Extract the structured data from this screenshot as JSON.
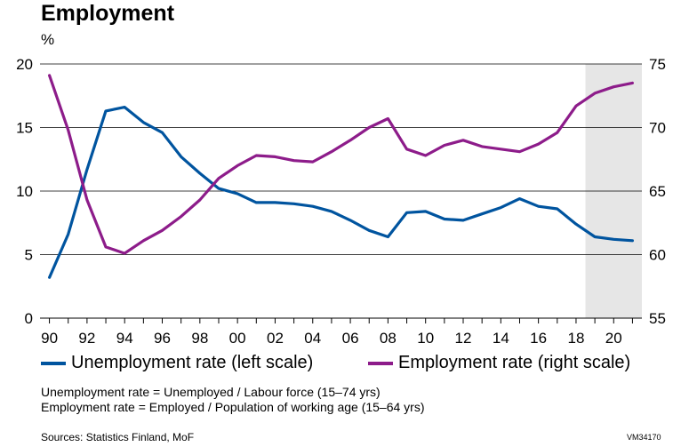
{
  "chart_data": {
    "type": "line",
    "title": "Employment",
    "left_unit": "%",
    "x_tick_labels": [
      "90",
      "92",
      "94",
      "96",
      "98",
      "00",
      "02",
      "04",
      "06",
      "08",
      "10",
      "12",
      "14",
      "16",
      "18",
      "20"
    ],
    "x": [
      1990,
      1991,
      1992,
      1993,
      1994,
      1995,
      1996,
      1997,
      1998,
      1999,
      2000,
      2001,
      2002,
      2003,
      2004,
      2005,
      2006,
      2007,
      2008,
      2009,
      2010,
      2011,
      2012,
      2013,
      2014,
      2015,
      2016,
      2017,
      2018,
      2019,
      2020,
      2021
    ],
    "y_left_ticks": [
      "0",
      "5",
      "10",
      "15",
      "20"
    ],
    "y_left_range": [
      0,
      20
    ],
    "y_right_ticks": [
      "55",
      "60",
      "65",
      "70",
      "75"
    ],
    "y_right_range": [
      55,
      75
    ],
    "forecast_shading_start": 2018.5,
    "grid": true,
    "series": [
      {
        "name": "Unemployment rate (left scale)",
        "axis": "left",
        "color": "#00549f",
        "values": [
          3.2,
          6.6,
          11.7,
          16.3,
          16.6,
          15.4,
          14.6,
          12.7,
          11.4,
          10.2,
          9.8,
          9.1,
          9.1,
          9.0,
          8.8,
          8.4,
          7.7,
          6.9,
          6.4,
          8.3,
          8.4,
          7.8,
          7.7,
          8.2,
          8.7,
          9.4,
          8.8,
          8.6,
          7.4,
          6.4,
          6.2,
          6.1
        ]
      },
      {
        "name": "Employment rate (right scale)",
        "axis": "right",
        "color": "#8d1c8a",
        "values": [
          74.1,
          69.8,
          64.3,
          60.6,
          60.1,
          61.1,
          61.9,
          63.0,
          64.3,
          66.0,
          67.0,
          67.8,
          67.7,
          67.4,
          67.3,
          68.1,
          69.0,
          70.0,
          70.7,
          68.3,
          67.8,
          68.6,
          69.0,
          68.5,
          68.3,
          68.1,
          68.7,
          69.6,
          71.7,
          72.7,
          73.2,
          73.5
        ]
      }
    ]
  },
  "legend": {
    "unemployment": "Unemployment rate (left scale)",
    "employment": "Employment rate (right scale)"
  },
  "notes": {
    "line1": "Unemployment rate = Unemployed / Labour force (15–74 yrs)",
    "line2": "Employment rate = Employed / Population of working age (15–64 yrs)"
  },
  "source": "Sources: Statistics Finland, MoF",
  "code": "VM34170"
}
